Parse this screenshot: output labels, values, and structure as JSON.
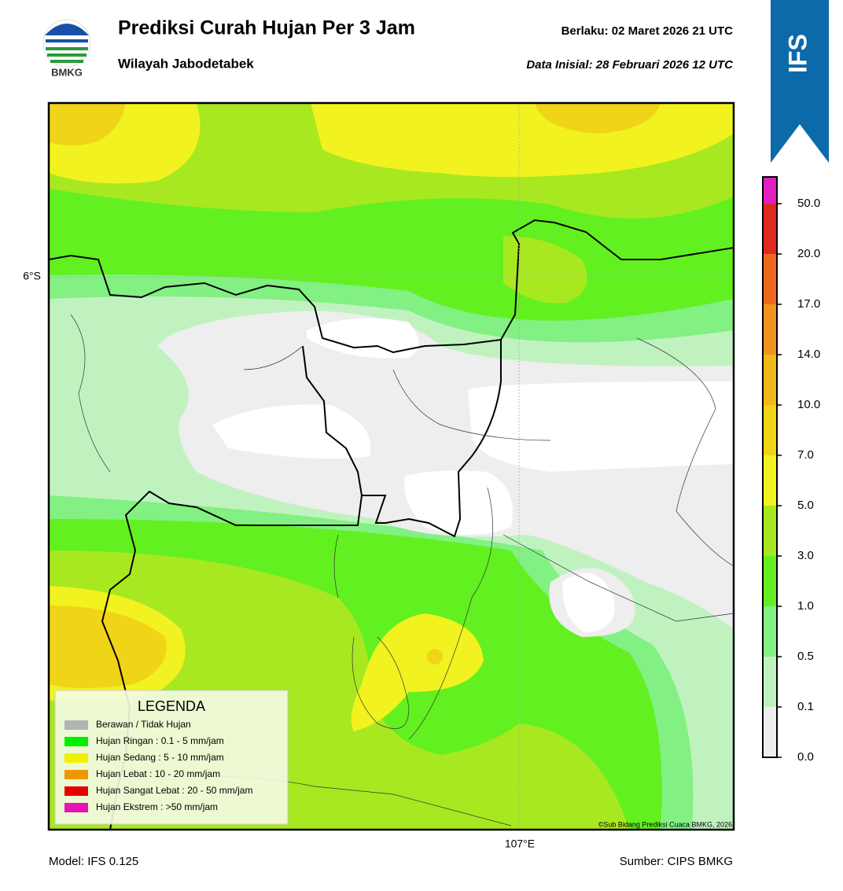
{
  "header": {
    "logo_text": "BMKG",
    "title": "Prediksi Curah Hujan Per 3 Jam",
    "subtitle": "Wilayah Jabodetabek",
    "valid": "Berlaku:  02 Maret 2026 21 UTC",
    "initial": "Data Inisial:  28 Februari 2026 12 UTC",
    "badge": "IFS"
  },
  "map": {
    "lat_label": "6°S",
    "lon_label": "107°E",
    "copyright": "©Sub Bidang Prediksi Cuaca BMKG, 2026"
  },
  "legend": {
    "title": "LEGENDA",
    "items": [
      {
        "label": "Berawan / Tidak Hujan",
        "color": "#b4b4b4"
      },
      {
        "label": "Hujan Ringan : 0.1 - 5 mm/jam",
        "color": "#00f000"
      },
      {
        "label": "Hujan Sedang : 5 - 10 mm/jam",
        "color": "#f0f000"
      },
      {
        "label": "Hujan Lebat : 10 - 20 mm/jam",
        "color": "#f09600"
      },
      {
        "label": "Hujan Sangat Lebat : 20 - 50 mm/jam",
        "color": "#e60000"
      },
      {
        "label": "Hujan Ekstrem : >50 mm/jam",
        "color": "#e614b4"
      }
    ]
  },
  "colorbar": {
    "ticks": [
      {
        "value": 0,
        "label": "0.0"
      },
      0.1,
      0.5,
      {
        "value": 1,
        "label": "1.0"
      },
      {
        "value": 3,
        "label": "3.0"
      },
      {
        "value": 5,
        "label": "5.0"
      },
      {
        "value": 7,
        "label": "7.0"
      },
      {
        "value": 10,
        "label": "10.0"
      },
      {
        "value": 14,
        "label": "14.0"
      },
      {
        "value": 17,
        "label": "17.0"
      },
      {
        "value": 20,
        "label": "20.0"
      },
      {
        "value": 50,
        "label": "50.0"
      }
    ],
    "colors": [
      "#eeeeee",
      "#c0f2c0",
      "#82f082",
      "#62f020",
      "#a8e820",
      "#f2f220",
      "#f0d418",
      "#f0b818",
      "#f09420",
      "#ee6a20",
      "#e02a20",
      "#e020c0"
    ]
  },
  "footer": {
    "model": "Model: IFS 0.125",
    "source": "Sumber: CIPS BMKG"
  }
}
